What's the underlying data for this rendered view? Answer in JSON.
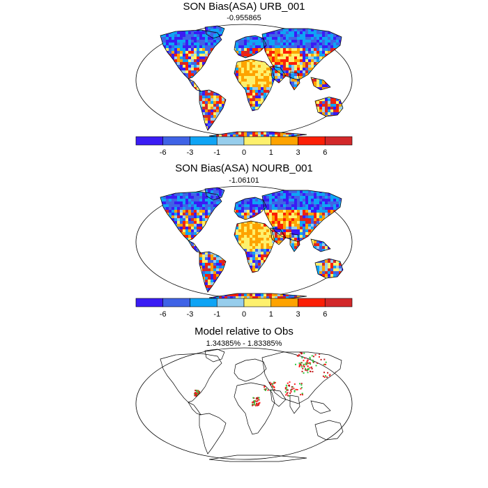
{
  "chart_data": [
    {
      "type": "heatmap",
      "title": "SON Bias(ASA) URB_001",
      "subtitle": "-0.955865",
      "colorbar": {
        "tick_labels": [
          "-6",
          "-3",
          "-1",
          "0",
          "1",
          "3",
          "6"
        ],
        "colors": [
          "#3a1cf4",
          "#3f63e6",
          "#0fa4f5",
          "#96cdec",
          "#fdf06c",
          "#fea300",
          "#fb1f06",
          "#d2282a"
        ]
      },
      "dominant_pattern": [
        {
          "region": "North America",
          "level": "mixed"
        },
        {
          "region": "Canada / Siberia",
          "level": "low"
        },
        {
          "region": "Sahara / Arabia",
          "level": "high"
        },
        {
          "region": "Amazon",
          "level": "mixed"
        }
      ]
    },
    {
      "type": "heatmap",
      "title": "SON Bias(ASA) NOURB_001",
      "subtitle": "-1.06101",
      "colorbar": {
        "tick_labels": [
          "-6",
          "-3",
          "-1",
          "0",
          "1",
          "3",
          "6"
        ],
        "colors": [
          "#3a1cf4",
          "#3f63e6",
          "#0fa4f5",
          "#96cdec",
          "#fdf06c",
          "#fea300",
          "#fb1f06",
          "#d2282a"
        ]
      }
    },
    {
      "type": "heatmap",
      "title": "Model relative to Obs",
      "subtitle": "1.34385% - 1.83385%",
      "marker_colors": [
        "#2ecc40",
        "#ff2020",
        "#c01818"
      ]
    }
  ]
}
